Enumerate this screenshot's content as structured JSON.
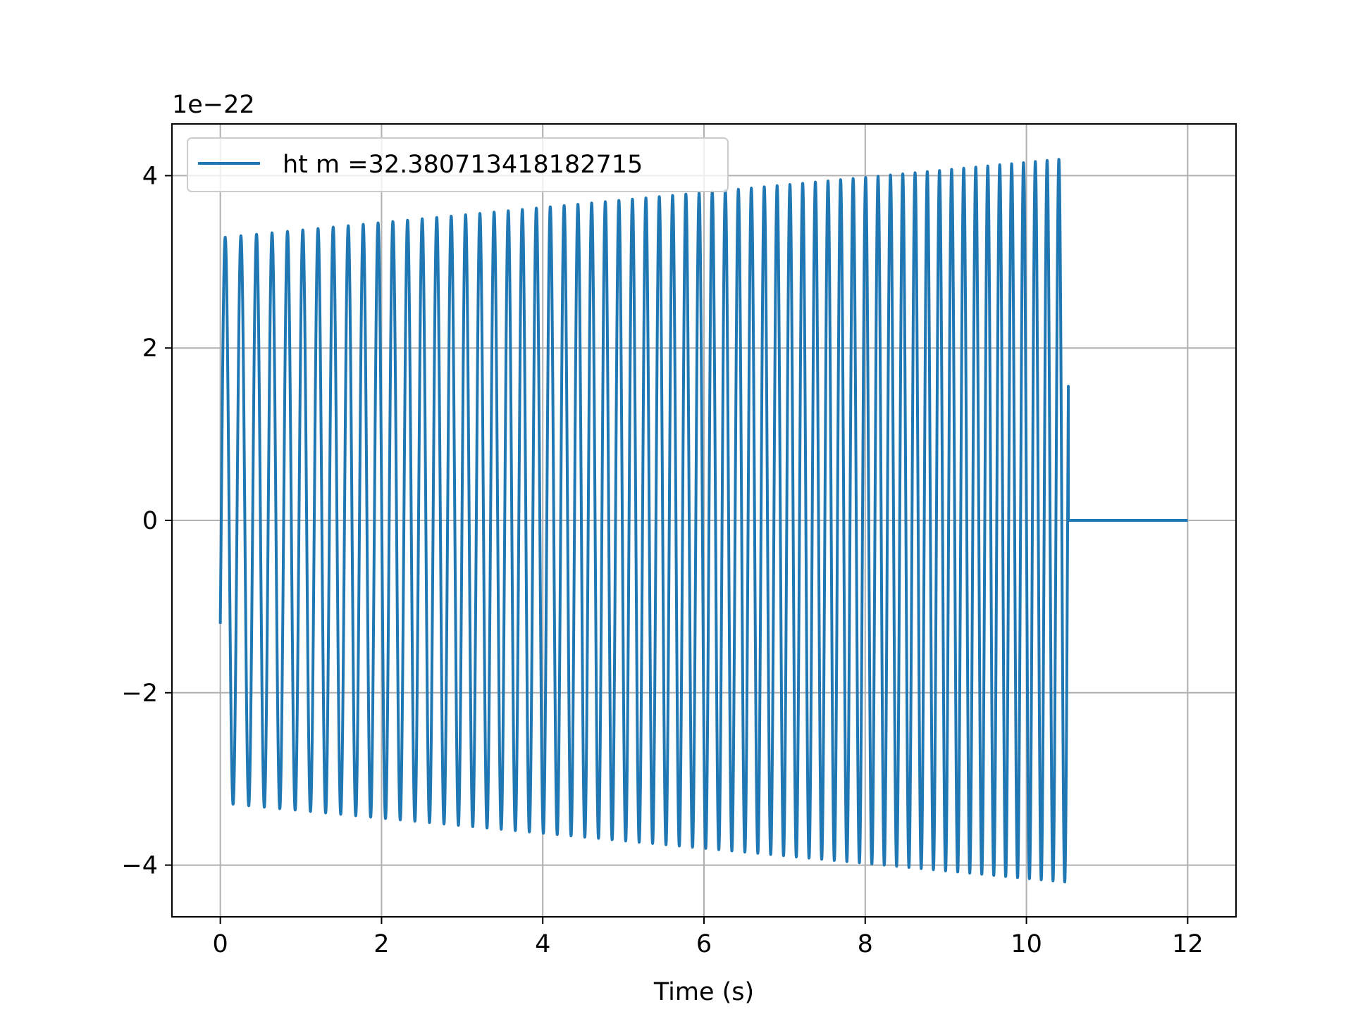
{
  "chart_data": {
    "type": "line",
    "title": "",
    "xlabel": "Time (s)",
    "ylabel": "",
    "y_offset_text": "1e−22",
    "y_scale_factor": 1e-22,
    "xlim": [
      -0.6,
      12.6
    ],
    "ylim": [
      -4.6,
      4.6
    ],
    "x_ticks": [
      0,
      2,
      4,
      6,
      8,
      10,
      12
    ],
    "x_tick_labels": [
      "0",
      "2",
      "4",
      "6",
      "8",
      "10",
      "12"
    ],
    "y_ticks": [
      -4,
      -2,
      0,
      2,
      4
    ],
    "y_tick_labels": [
      "−4",
      "−2",
      "0",
      "2",
      "4"
    ],
    "grid": true,
    "legend_position": "upper-left",
    "series": [
      {
        "name": "ht m =32.380713418182715",
        "color": "#1f77b4",
        "signal": "chirp",
        "x_start": 0,
        "x_end": 12,
        "merger_time": 10.52,
        "start_value": -1.2,
        "amplitude_start": 3.28,
        "amplitude_end": 4.2,
        "frequency_start": 5.1,
        "frequency_end": 6.9,
        "value_after_merger": 0
      }
    ]
  }
}
